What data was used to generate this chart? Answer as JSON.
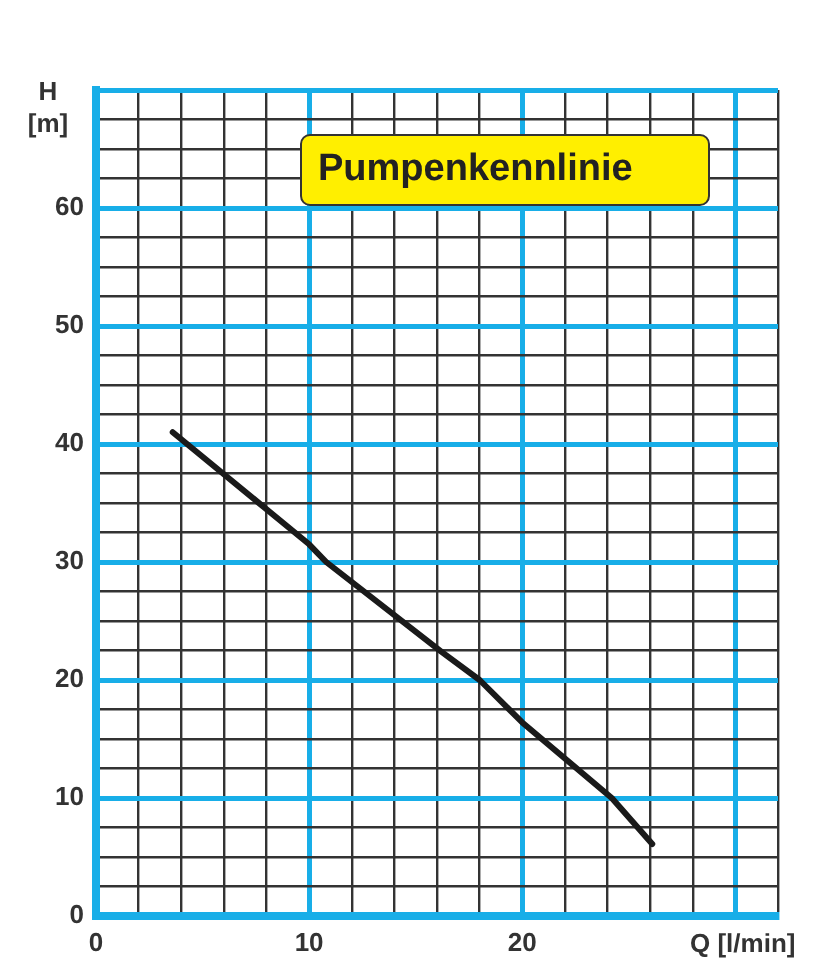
{
  "chart_data": {
    "type": "line",
    "title": "Pumpenkennlinie",
    "xlabel": "Q [l/min]",
    "ylabel": "H [m]",
    "x": [
      3.6,
      10,
      10.8,
      16.2,
      18,
      20,
      24.2,
      26.1
    ],
    "series": [
      {
        "color": "#1a1a1a",
        "values": [
          41,
          31.5,
          30,
          22.4,
          20,
          16.4,
          10,
          6.1
        ]
      }
    ],
    "xlim": [
      0,
      32
    ],
    "ylim": [
      0,
      70
    ],
    "xticks": [
      0,
      {
        "value": 2,
        "label": null
      },
      {
        "value": 4,
        "label": null
      },
      {
        "value": 6,
        "label": null
      },
      {
        "value": 8,
        "label": null
      },
      10,
      {
        "value": 12,
        "label": null
      },
      {
        "value": 14,
        "label": null
      },
      {
        "value": 16,
        "label": null
      },
      {
        "value": 18,
        "label": null
      },
      20,
      {
        "value": 22,
        "label": null
      },
      {
        "value": 24,
        "label": null
      },
      {
        "value": 26,
        "label": null
      },
      {
        "value": 28,
        "label": null
      },
      {
        "value": 30,
        "label": null
      },
      {
        "value": 32,
        "label": null
      }
    ],
    "yticks": [
      0,
      {
        "value": 2.5,
        "label": null
      },
      {
        "value": 5,
        "label": null
      },
      {
        "value": 7.5,
        "label": null
      },
      10,
      {
        "value": 12.5,
        "label": null
      },
      {
        "value": 15,
        "label": null
      },
      {
        "value": 17.5,
        "label": null
      },
      20,
      {
        "value": 22.5,
        "label": null
      },
      {
        "value": 25,
        "label": null
      },
      {
        "value": 27.5,
        "label": null
      },
      30,
      {
        "value": 32.5,
        "label": null
      },
      {
        "value": 35,
        "label": null
      },
      {
        "value": 37.5,
        "label": null
      },
      40,
      {
        "value": 42.5,
        "label": null
      },
      {
        "value": 45,
        "label": null
      },
      {
        "value": 47.5,
        "label": null
      },
      50,
      {
        "value": 52.5,
        "label": null
      },
      {
        "value": 55,
        "label": null
      },
      {
        "value": 57.5,
        "label": null
      },
      60,
      {
        "value": 62.5,
        "label": null
      },
      {
        "value": 65,
        "label": null
      },
      {
        "value": 67.5,
        "label": null
      },
      {
        "value": 70,
        "label": null
      }
    ],
    "grid": true,
    "legend": false,
    "marker": "none",
    "line_style": "solid"
  }
}
